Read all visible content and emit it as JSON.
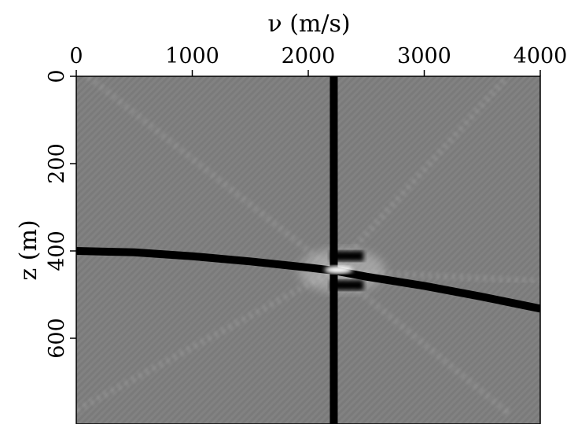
{
  "chart_data": {
    "type": "heatmap",
    "xlabel": "ν (m/s)",
    "ylabel": "z (m)",
    "xlim": [
      0,
      4000
    ],
    "ylim": [
      0,
      800
    ],
    "y_inverted": true,
    "x_axis_position": "top",
    "x_ticks": [
      0,
      1000,
      2000,
      3000,
      4000
    ],
    "x_tick_labels": [
      "0",
      "1000",
      "2000",
      "3000",
      "4000"
    ],
    "y_ticks": [
      0,
      200,
      400,
      600
    ],
    "y_tick_labels": [
      "0",
      "200",
      "400",
      "600"
    ],
    "colormap": "grayscale",
    "background_level": "mid-gray",
    "features": {
      "vertical_line": {
        "v": 2220
      },
      "curve": [
        [
          0,
          400
        ],
        [
          500,
          403
        ],
        [
          1000,
          412
        ],
        [
          1500,
          424
        ],
        [
          2000,
          438
        ],
        [
          2220,
          445
        ],
        [
          2500,
          459
        ],
        [
          3000,
          480
        ],
        [
          3500,
          505
        ],
        [
          4000,
          532
        ]
      ],
      "focus_point": {
        "v": 2220,
        "z": 445
      },
      "rays": [
        {
          "from": [
            100,
            0
          ],
          "to": [
            2220,
            445
          ]
        },
        {
          "from": [
            0,
            765
          ],
          "to": [
            2220,
            445
          ]
        },
        {
          "from": [
            2220,
            445
          ],
          "to": [
            3720,
            0
          ]
        },
        {
          "from": [
            2220,
            445
          ],
          "to": [
            3720,
            770
          ]
        },
        {
          "from": [
            2220,
            445
          ],
          "to": [
            4000,
            470
          ]
        }
      ]
    }
  }
}
